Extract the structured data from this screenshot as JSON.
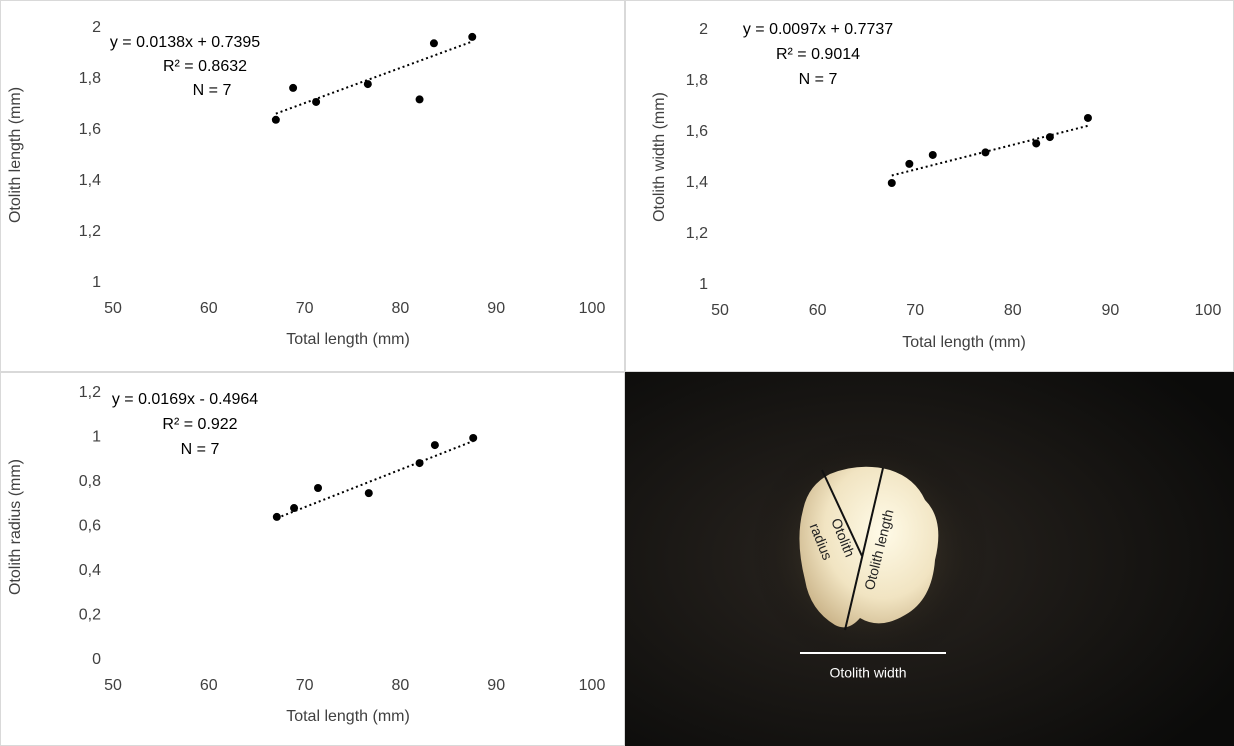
{
  "chart_data": [
    {
      "type": "scatter",
      "x_label": "Total length (mm)",
      "y_label": "Otolith length (mm)",
      "annotations": [
        "y = 0.0138x + 0.7395",
        "R² = 0.8632",
        "N = 7"
      ],
      "x": [
        67.0,
        68.8,
        71.2,
        76.6,
        82.0,
        83.5,
        87.5
      ],
      "values": [
        1.64,
        1.765,
        1.71,
        1.78,
        1.72,
        1.94,
        1.965
      ],
      "color": "#000000",
      "trendline": {
        "slope": 0.0138,
        "intercept": 0.7395
      },
      "xlim": [
        50,
        100
      ],
      "xticks": [
        50,
        60,
        70,
        80,
        90,
        100
      ],
      "ylim": [
        1,
        2
      ],
      "yticks": [
        1,
        {
          "value": 1.2,
          "label": "1,2"
        },
        {
          "value": 1.4,
          "label": "1,4"
        },
        {
          "value": 1.6,
          "label": "1,6"
        },
        {
          "value": 1.8,
          "label": "1,8"
        },
        2
      ],
      "grid": false
    },
    {
      "type": "scatter",
      "x_label": "Total length (mm)",
      "y_label": "Otolith width (mm)",
      "annotations": [
        "y = 0.0097x + 0.7737",
        "R² = 0.9014",
        "N = 7"
      ],
      "x": [
        67.6,
        69.4,
        71.8,
        77.2,
        82.4,
        83.8,
        87.7
      ],
      "values": [
        1.4,
        1.475,
        1.51,
        1.52,
        1.555,
        1.58,
        1.655
      ],
      "color": "#000000",
      "trendline": {
        "slope": 0.0097,
        "intercept": 0.7737
      },
      "xlim": [
        50,
        100
      ],
      "xticks": [
        50,
        60,
        70,
        80,
        90,
        100
      ],
      "ylim": [
        1,
        2
      ],
      "yticks": [
        1,
        {
          "value": 1.2,
          "label": "1,2"
        },
        {
          "value": 1.4,
          "label": "1,4"
        },
        {
          "value": 1.6,
          "label": "1,6"
        },
        {
          "value": 1.8,
          "label": "1,8"
        },
        2
      ],
      "grid": false
    },
    {
      "type": "scatter",
      "x_label": "Total length (mm)",
      "y_label": "Otolith radius (mm)",
      "annotations": [
        "y = 0.0169x - 0.4964",
        "R² = 0.922",
        "N = 7"
      ],
      "x": [
        67.1,
        68.9,
        71.4,
        76.7,
        82.0,
        83.6,
        87.6
      ],
      "values": [
        0.643,
        0.683,
        0.773,
        0.75,
        0.885,
        0.966,
        0.998
      ],
      "color": "#000000",
      "trendline": {
        "slope": 0.0169,
        "intercept": -0.4964
      },
      "xlim": [
        50,
        100
      ],
      "xticks": [
        50,
        60,
        70,
        80,
        90,
        100
      ],
      "ylim": [
        0,
        1.2
      ],
      "yticks": [
        0,
        {
          "value": 0.2,
          "label": "0,2"
        },
        {
          "value": 0.4,
          "label": "0,4"
        },
        {
          "value": 0.6,
          "label": "0,6"
        },
        {
          "value": 0.8,
          "label": "0,8"
        },
        1,
        {
          "value": 1.2,
          "label": "1,2"
        }
      ],
      "grid": false
    }
  ],
  "image": {
    "radius_label": [
      "Otolith",
      "radius"
    ],
    "length_label": "Otolith length",
    "width_label": "Otolith width"
  }
}
